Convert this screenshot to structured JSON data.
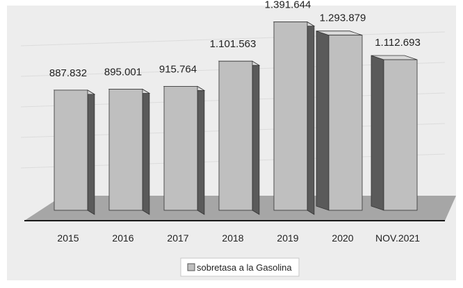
{
  "chart_data": {
    "type": "bar",
    "categories": [
      "2015",
      "2016",
      "2017",
      "2018",
      "2019",
      "2020",
      "NOV.2021"
    ],
    "series": [
      {
        "name": "sobretasa a la Gasolina",
        "values": [
          887832,
          895001,
          915764,
          1101563,
          1391644,
          1293879,
          1112693
        ],
        "labels": [
          "887.832",
          "895.001",
          "915.764",
          "1.101.563",
          "1.391.644",
          "1.293.879",
          "1.112.693"
        ]
      }
    ],
    "title": "",
    "xlabel": "",
    "ylabel": "",
    "ylim": [
      0,
      1400000
    ],
    "grid": true,
    "legend": "bottom",
    "style": "3d-column"
  },
  "colors": {
    "bar_front": "#bfbfbf",
    "bar_side": "#5a5a5a",
    "bar_top": "#d9d9d9",
    "floor": "#a6a6a6",
    "plot_background": "#ededed",
    "grid": "#dcdcdc",
    "baseline": "#1a1a1a"
  }
}
